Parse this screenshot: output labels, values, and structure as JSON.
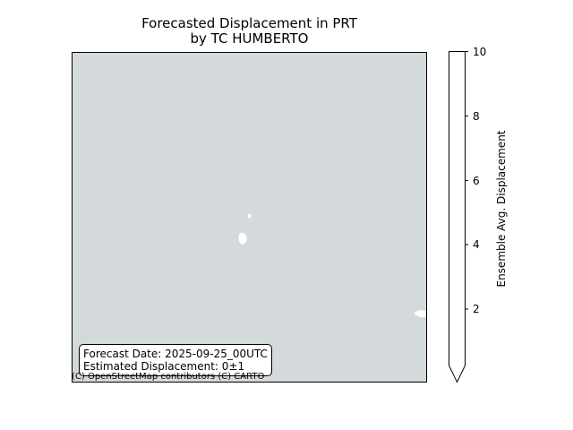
{
  "title": {
    "line1": "Forecasted Displacement in PRT",
    "line2": "by TC HUMBERTO"
  },
  "map": {
    "ocean_color": "#d4dadc",
    "land_color": "#ffffff",
    "attribution": "(C) OpenStreetMap contributors (C) CARTO"
  },
  "info_box": {
    "forecast_date": "Forecast Date: 2025-09-25_00UTC",
    "estimated_displacement": "Estimated Displacement: 0±1"
  },
  "colorbar": {
    "title": "Ensemble Avg. Displacement",
    "min": 0,
    "max": 10,
    "ticks": [
      "2",
      "4",
      "6",
      "8",
      "10"
    ],
    "extend": "min",
    "fill_color": "#ffffff"
  }
}
